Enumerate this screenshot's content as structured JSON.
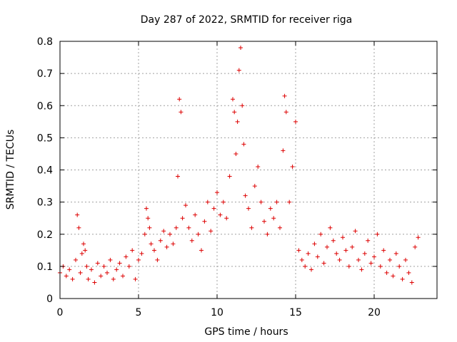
{
  "chart_data": {
    "type": "scatter",
    "title": "Day 287 of 2022, SRMTID for receiver riga",
    "xlabel": "GPS time / hours",
    "ylabel": "SRMTID / TECUs",
    "xlim": [
      0,
      24
    ],
    "ylim": [
      0,
      0.8
    ],
    "xticks": [
      0,
      5,
      10,
      15,
      20
    ],
    "xtick_labels": [
      "0",
      "5",
      "10",
      "15",
      "20"
    ],
    "yticks": [
      0,
      0.1,
      0.2,
      0.3,
      0.4,
      0.5,
      0.6,
      0.7,
      0.8
    ],
    "ytick_labels": [
      "0",
      "0.1",
      "0.2",
      "0.3",
      "0.4",
      "0.5",
      "0.6",
      "0.7",
      "0.8"
    ],
    "grid": true,
    "marker": "plus",
    "color": "#dd0000",
    "series": [
      {
        "name": "SRMTID",
        "x": [
          0.0,
          0.2,
          0.4,
          0.6,
          0.8,
          1.0,
          1.1,
          1.2,
          1.3,
          1.4,
          1.5,
          1.6,
          1.7,
          1.8,
          2.0,
          2.2,
          2.4,
          2.6,
          2.8,
          3.0,
          3.2,
          3.4,
          3.6,
          3.8,
          4.0,
          4.2,
          4.4,
          4.6,
          4.8,
          5.0,
          5.2,
          5.4,
          5.5,
          5.6,
          5.7,
          5.8,
          6.0,
          6.2,
          6.4,
          6.6,
          6.8,
          7.0,
          7.2,
          7.4,
          7.5,
          7.6,
          7.7,
          7.8,
          8.0,
          8.2,
          8.4,
          8.6,
          8.8,
          9.0,
          9.2,
          9.4,
          9.6,
          9.8,
          10.0,
          10.2,
          10.4,
          10.6,
          10.8,
          11.0,
          11.1,
          11.2,
          11.3,
          11.4,
          11.5,
          11.6,
          11.7,
          11.8,
          12.0,
          12.2,
          12.4,
          12.6,
          12.8,
          13.0,
          13.2,
          13.4,
          13.6,
          13.8,
          14.0,
          14.2,
          14.3,
          14.4,
          14.6,
          14.8,
          15.0,
          15.2,
          15.4,
          15.6,
          15.8,
          16.0,
          16.2,
          16.4,
          16.6,
          16.8,
          17.0,
          17.2,
          17.4,
          17.6,
          17.8,
          18.0,
          18.2,
          18.4,
          18.6,
          18.8,
          19.0,
          19.2,
          19.4,
          19.6,
          19.8,
          20.0,
          20.2,
          20.4,
          20.6,
          20.8,
          21.0,
          21.2,
          21.4,
          21.6,
          21.8,
          22.0,
          22.2,
          22.4,
          22.6,
          22.8
        ],
        "y": [
          0.08,
          0.1,
          0.07,
          0.09,
          0.06,
          0.12,
          0.26,
          0.22,
          0.08,
          0.14,
          0.17,
          0.15,
          0.1,
          0.06,
          0.09,
          0.05,
          0.11,
          0.07,
          0.1,
          0.08,
          0.12,
          0.06,
          0.09,
          0.11,
          0.07,
          0.13,
          0.1,
          0.15,
          0.06,
          0.12,
          0.14,
          0.2,
          0.28,
          0.25,
          0.22,
          0.17,
          0.15,
          0.12,
          0.18,
          0.21,
          0.16,
          0.2,
          0.17,
          0.22,
          0.38,
          0.62,
          0.58,
          0.25,
          0.29,
          0.22,
          0.18,
          0.26,
          0.2,
          0.15,
          0.24,
          0.3,
          0.21,
          0.28,
          0.33,
          0.26,
          0.3,
          0.25,
          0.38,
          0.62,
          0.58,
          0.45,
          0.55,
          0.71,
          0.78,
          0.6,
          0.48,
          0.32,
          0.28,
          0.22,
          0.35,
          0.41,
          0.3,
          0.24,
          0.2,
          0.28,
          0.25,
          0.3,
          0.22,
          0.46,
          0.63,
          0.58,
          0.3,
          0.41,
          0.55,
          0.15,
          0.12,
          0.1,
          0.14,
          0.09,
          0.17,
          0.13,
          0.2,
          0.11,
          0.16,
          0.22,
          0.18,
          0.14,
          0.12,
          0.19,
          0.15,
          0.1,
          0.16,
          0.21,
          0.12,
          0.09,
          0.14,
          0.18,
          0.11,
          0.13,
          0.2,
          0.1,
          0.15,
          0.08,
          0.12,
          0.07,
          0.14,
          0.1,
          0.06,
          0.12,
          0.08,
          0.05,
          0.16,
          0.19
        ]
      }
    ]
  }
}
